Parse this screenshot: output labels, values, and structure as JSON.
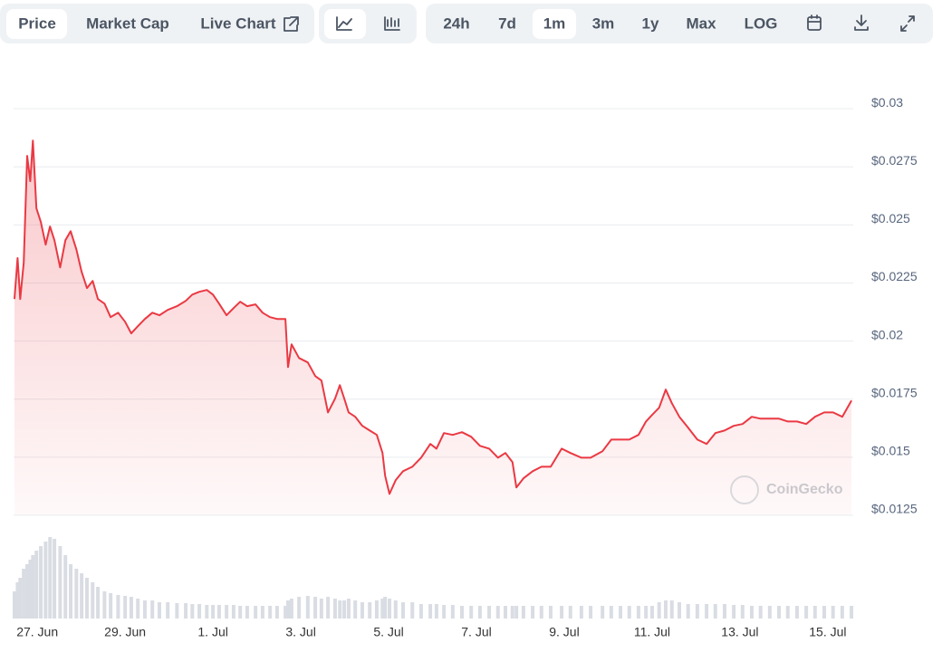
{
  "toolbar": {
    "view": [
      "Price",
      "Market Cap",
      "Live Chart"
    ],
    "ranges": [
      "24h",
      "7d",
      "1m",
      "3m",
      "1y",
      "Max",
      "LOG"
    ],
    "active_view": "Price",
    "active_range": "1m"
  },
  "watermark": "CoinGecko",
  "chart_data": {
    "type": "line",
    "color": "#ea3943",
    "volume_color": "#d9dde3",
    "x": [
      -0.52,
      -0.45,
      -0.39,
      -0.31,
      -0.23,
      -0.16,
      -0.1,
      -0.02,
      0.08,
      0.19,
      0.29,
      0.39,
      0.52,
      0.64,
      0.76,
      0.89,
      1.01,
      1.13,
      1.26,
      1.38,
      1.53,
      1.67,
      1.84,
      2.0,
      2.14,
      2.29,
      2.45,
      2.62,
      2.78,
      2.97,
      3.18,
      3.38,
      3.53,
      3.69,
      3.86,
      4.0,
      4.14,
      4.31,
      4.47,
      4.62,
      4.78,
      4.97,
      5.13,
      5.3,
      5.46,
      5.65,
      5.71,
      5.79,
      5.96,
      6.16,
      6.33,
      6.47,
      6.62,
      6.78,
      6.89,
      6.99,
      7.09,
      7.24,
      7.4,
      7.57,
      7.73,
      7.86,
      7.92,
      8.02,
      8.16,
      8.33,
      8.54,
      8.74,
      8.95,
      9.09,
      9.26,
      9.46,
      9.67,
      9.88,
      10.08,
      10.29,
      10.49,
      10.66,
      10.82,
      10.91,
      11.07,
      11.28,
      11.48,
      11.69,
      11.94,
      12.14,
      12.39,
      12.6,
      12.87,
      13.07,
      13.28,
      13.48,
      13.69,
      13.86,
      14.0,
      14.16,
      14.31,
      14.45,
      14.62,
      14.82,
      15.03,
      15.24,
      15.44,
      15.65,
      15.86,
      16.06,
      16.27,
      16.47,
      16.68,
      16.89,
      17.09,
      17.3,
      17.51,
      17.71,
      17.92,
      18.12,
      18.33,
      18.54
    ],
    "series": [
      {
        "name": "Price",
        "values": [
          0.02181,
          0.02357,
          0.02181,
          0.02337,
          0.02797,
          0.02688,
          0.02863,
          0.02571,
          0.02512,
          0.02415,
          0.02493,
          0.02434,
          0.02317,
          0.02434,
          0.02473,
          0.02395,
          0.02298,
          0.02228,
          0.02259,
          0.02181,
          0.02161,
          0.02103,
          0.02122,
          0.02083,
          0.02033,
          0.02064,
          0.02095,
          0.02122,
          0.02111,
          0.02134,
          0.0215,
          0.02173,
          0.022,
          0.02212,
          0.0222,
          0.022,
          0.02161,
          0.02111,
          0.02142,
          0.02169,
          0.0215,
          0.02158,
          0.02122,
          0.02103,
          0.02095,
          0.02095,
          0.01888,
          0.01986,
          0.01927,
          0.01908,
          0.01849,
          0.0183,
          0.01693,
          0.01752,
          0.0181,
          0.01752,
          0.01693,
          0.01674,
          0.01635,
          0.01615,
          0.01596,
          0.01518,
          0.0142,
          0.01342,
          0.01401,
          0.0144,
          0.01459,
          0.01498,
          0.01557,
          0.01537,
          0.01604,
          0.01596,
          0.01608,
          0.01588,
          0.01549,
          0.01537,
          0.01498,
          0.01518,
          0.01479,
          0.0137,
          0.01409,
          0.0144,
          0.01459,
          0.01459,
          0.01537,
          0.01518,
          0.01498,
          0.01498,
          0.01526,
          0.01576,
          0.01576,
          0.01576,
          0.01596,
          0.01654,
          0.01682,
          0.01713,
          0.01791,
          0.01732,
          0.01674,
          0.01627,
          0.01576,
          0.01557,
          0.01604,
          0.01615,
          0.01635,
          0.01643,
          0.01674,
          0.01666,
          0.01666,
          0.01666,
          0.01654,
          0.01654,
          0.01643,
          0.01674,
          0.01693,
          0.01693,
          0.01674,
          0.01744
        ]
      },
      {
        "name": "Volume",
        "axis": "volume",
        "values": [
          30,
          40,
          45,
          55,
          60,
          65,
          70,
          75,
          80,
          85,
          90,
          88,
          80,
          70,
          60,
          55,
          50,
          45,
          40,
          35,
          30,
          28,
          26,
          25,
          24,
          22,
          20,
          20,
          18,
          18,
          17,
          17,
          16,
          16,
          15,
          15,
          15,
          15,
          15,
          14,
          14,
          14,
          14,
          14,
          14,
          14,
          20,
          22,
          24,
          25,
          24,
          22,
          24,
          22,
          20,
          20,
          22,
          20,
          18,
          18,
          20,
          22,
          24,
          22,
          20,
          18,
          18,
          16,
          16,
          16,
          15,
          15,
          14,
          14,
          14,
          14,
          14,
          14,
          14,
          14,
          14,
          14,
          14,
          14,
          14,
          14,
          14,
          14,
          14,
          14,
          14,
          14,
          14,
          14,
          14,
          18,
          20,
          20,
          18,
          16,
          16,
          16,
          16,
          16,
          15,
          15,
          14,
          14,
          14,
          14,
          14,
          14,
          14,
          14,
          14,
          14,
          14,
          14
        ]
      }
    ],
    "xlim": [
      -0.54,
      18.58
    ],
    "xticks": [
      {
        "value": 0,
        "label": "27. Jun"
      },
      {
        "value": 2,
        "label": "29. Jun"
      },
      {
        "value": 4,
        "label": "1. Jul"
      },
      {
        "value": 6,
        "label": "3. Jul"
      },
      {
        "value": 8,
        "label": "5. Jul"
      },
      {
        "value": 10,
        "label": "7. Jul"
      },
      {
        "value": 12,
        "label": "9. Jul"
      },
      {
        "value": 14,
        "label": "11. Jul"
      },
      {
        "value": 16,
        "label": "13. Jul"
      },
      {
        "value": 18,
        "label": "15. Jul"
      }
    ],
    "ylim": [
      0.0125,
      0.031
    ],
    "yticks": [
      {
        "value": 0.0125,
        "label": "$0.0125"
      },
      {
        "value": 0.015,
        "label": "$0.015"
      },
      {
        "value": 0.0175,
        "label": "$0.0175"
      },
      {
        "value": 0.02,
        "label": "$0.02"
      },
      {
        "value": 0.0225,
        "label": "$0.0225"
      },
      {
        "value": 0.025,
        "label": "$0.025"
      },
      {
        "value": 0.0275,
        "label": "$0.0275"
      },
      {
        "value": 0.03,
        "label": "$0.03"
      }
    ],
    "volume_lim": [
      0,
      100
    ],
    "grid": true
  }
}
